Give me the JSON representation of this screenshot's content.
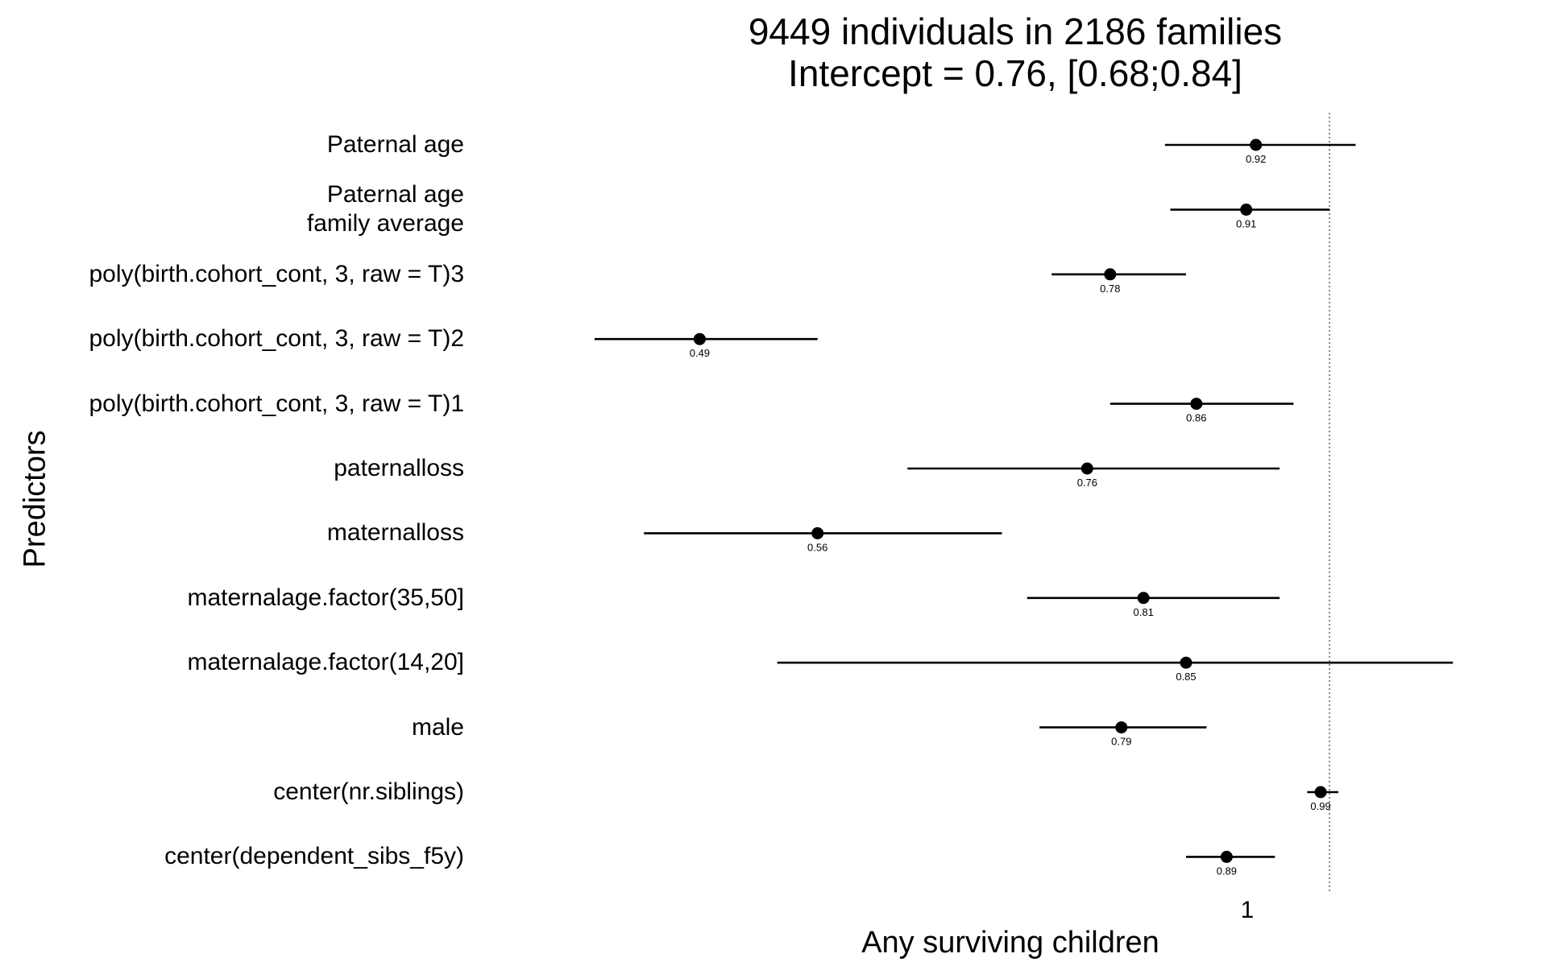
{
  "chart_data": {
    "type": "forest",
    "title": "9449 individuals in 2186 families",
    "subtitle": "Intercept = 0.76, [0.68;0.84]",
    "xlabel": "Any surviving children",
    "ylabel": "Predictors",
    "x_scale": "log",
    "xlim": [
      0.4,
      1.22
    ],
    "x_ticks": [
      1
    ],
    "x_tick_labels": [
      "1"
    ],
    "reference_line": 1,
    "grid": false,
    "rows": [
      {
        "label": "Paternal age",
        "estimate": 0.92,
        "low": 0.83,
        "high": 1.03,
        "value_label": "0.92"
      },
      {
        "label": "Paternal age\nfamily average",
        "estimate": 0.91,
        "low": 0.835,
        "high": 1.0,
        "value_label": "0.91"
      },
      {
        "label": "poly(birth.cohort_cont, 3, raw = T)3",
        "estimate": 0.78,
        "low": 0.73,
        "high": 0.85,
        "value_label": "0.78"
      },
      {
        "label": "poly(birth.cohort_cont, 3, raw = T)2",
        "estimate": 0.49,
        "low": 0.435,
        "high": 0.56,
        "value_label": "0.49"
      },
      {
        "label": "poly(birth.cohort_cont, 3, raw = T)1",
        "estimate": 0.86,
        "low": 0.78,
        "high": 0.96,
        "value_label": "0.86"
      },
      {
        "label": "paternalloss",
        "estimate": 0.76,
        "low": 0.62,
        "high": 0.945,
        "value_label": "0.76"
      },
      {
        "label": "maternalloss",
        "estimate": 0.56,
        "low": 0.46,
        "high": 0.69,
        "value_label": "0.56"
      },
      {
        "label": "maternalage.factor(35,50]",
        "estimate": 0.81,
        "low": 0.71,
        "high": 0.945,
        "value_label": "0.81"
      },
      {
        "label": "maternalage.factor(14,20]",
        "estimate": 0.85,
        "low": 0.535,
        "high": 1.15,
        "value_label": "0.85"
      },
      {
        "label": "male",
        "estimate": 0.79,
        "low": 0.72,
        "high": 0.87,
        "value_label": "0.79"
      },
      {
        "label": "center(nr.siblings)",
        "estimate": 0.99,
        "low": 0.975,
        "high": 1.01,
        "value_label": "0.99"
      },
      {
        "label": "center(dependent_sibs_f5y)",
        "estimate": 0.89,
        "low": 0.85,
        "high": 0.94,
        "value_label": "0.89"
      }
    ]
  }
}
